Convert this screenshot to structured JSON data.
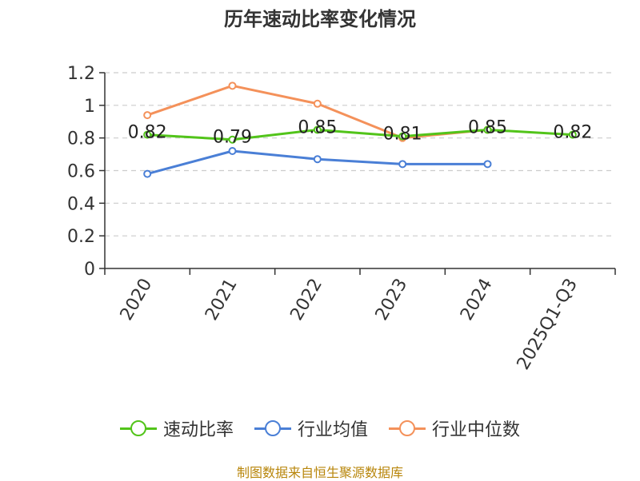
{
  "chart_data": {
    "type": "line",
    "title": "历年速动比率变化情况",
    "categories": [
      "2020",
      "2021",
      "2022",
      "2023",
      "2024",
      "2025Q1-Q3"
    ],
    "ylim": [
      0,
      1.2
    ],
    "yticks": [
      "0",
      "0.2",
      "0.4",
      "0.6",
      "0.8",
      "1",
      "1.2"
    ],
    "grid": true,
    "legend_position": "bottom",
    "series": [
      {
        "name": "速动比率",
        "color": "#52c41a",
        "values": [
          0.82,
          0.79,
          0.85,
          0.81,
          0.85,
          0.82
        ],
        "labels": [
          "0.82",
          "0.79",
          "0.85",
          "0.81",
          "0.85",
          "0.82"
        ]
      },
      {
        "name": "行业均值",
        "color": "#4a7fd6",
        "values": [
          0.58,
          0.72,
          0.67,
          0.64,
          0.64,
          null
        ]
      },
      {
        "name": "行业中位数",
        "color": "#f4915a",
        "values": [
          0.94,
          1.12,
          1.01,
          0.8,
          0.85,
          null
        ]
      }
    ]
  },
  "source_text": "制图数据来自恒生聚源数据库"
}
